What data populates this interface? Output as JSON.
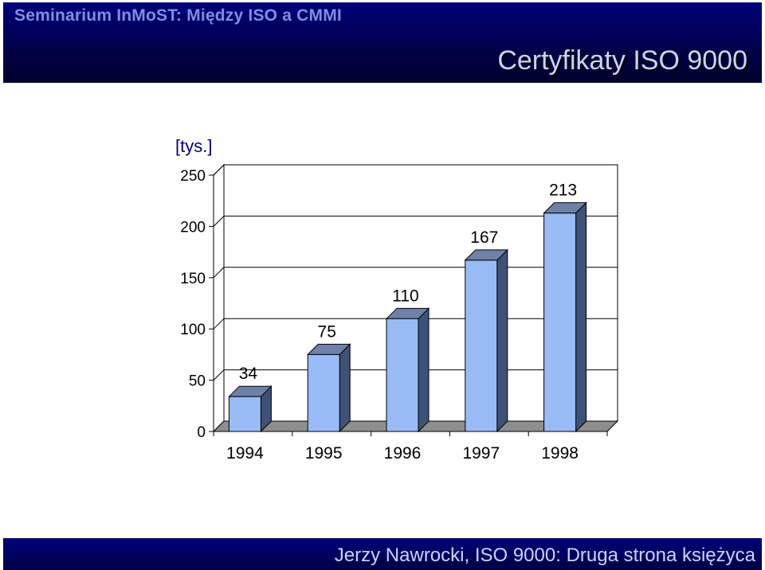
{
  "header": {
    "top_text": "Seminarium InMoST: Między ISO a CMMI",
    "title": "Certyfikaty ISO 9000"
  },
  "footer": {
    "text": "Jerzy Nawrocki, ISO 9000: Druga strona księżyca"
  },
  "colors": {
    "header_bg": "#00007a",
    "bar_front": "#99bbf5",
    "bar_side": "#3f5176",
    "bar_top": "#7081a8",
    "floor": "#8e8e8e"
  },
  "chart_data": {
    "type": "bar",
    "unit_label": "[tys.]",
    "categories": [
      "1994",
      "1995",
      "1996",
      "1997",
      "1998"
    ],
    "values": [
      34,
      75,
      110,
      167,
      213
    ],
    "y_ticks": [
      "0",
      "50",
      "100",
      "150",
      "200",
      "250"
    ],
    "ylim": [
      0,
      250
    ],
    "grid": true,
    "legend": false,
    "style": "3d"
  }
}
